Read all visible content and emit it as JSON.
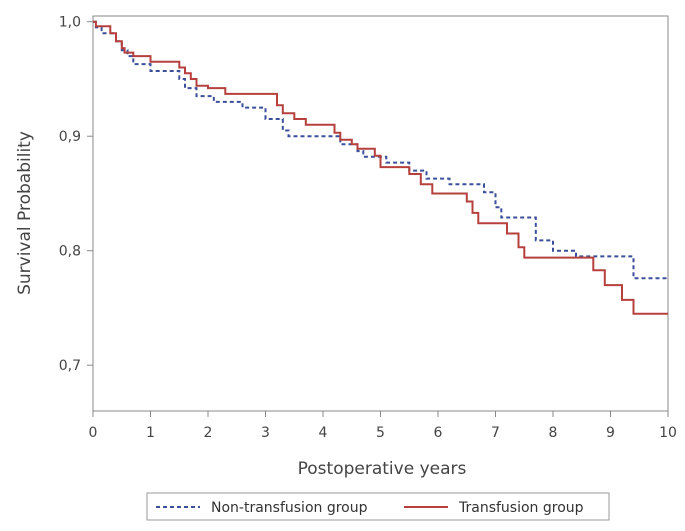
{
  "chart_data": {
    "type": "line",
    "step": true,
    "xlabel": "Postoperative years",
    "ylabel": "Survival Probability",
    "xlim": [
      0,
      10
    ],
    "ylim": [
      0.66,
      1.005
    ],
    "x_ticks": [
      0,
      1,
      2,
      3,
      4,
      5,
      6,
      7,
      8,
      9,
      10
    ],
    "x_tick_labels": [
      "0",
      "1",
      "2",
      "3",
      "4",
      "5",
      "6",
      "7",
      "8",
      "9",
      "10"
    ],
    "y_ticks": [
      0.7,
      0.8,
      0.9,
      1.0
    ],
    "y_tick_labels": [
      "0,7",
      "0,8",
      "0,9",
      "1,0"
    ],
    "grid": false,
    "legend_position": "bottom",
    "series": [
      {
        "name": "Non-transfusion group",
        "color": "#3b4f9a",
        "dash": "dashed",
        "points": [
          [
            0.0,
            1.0
          ],
          [
            0.05,
            0.995
          ],
          [
            0.15,
            0.99
          ],
          [
            0.4,
            0.983
          ],
          [
            0.5,
            0.975
          ],
          [
            0.6,
            0.97
          ],
          [
            0.7,
            0.963
          ],
          [
            1.0,
            0.957
          ],
          [
            1.5,
            0.95
          ],
          [
            1.6,
            0.942
          ],
          [
            1.8,
            0.935
          ],
          [
            2.1,
            0.93
          ],
          [
            2.6,
            0.925
          ],
          [
            3.0,
            0.915
          ],
          [
            3.3,
            0.905
          ],
          [
            3.4,
            0.9
          ],
          [
            4.3,
            0.893
          ],
          [
            4.6,
            0.887
          ],
          [
            4.7,
            0.882
          ],
          [
            5.1,
            0.877
          ],
          [
            5.5,
            0.87
          ],
          [
            5.8,
            0.863
          ],
          [
            6.2,
            0.858
          ],
          [
            6.8,
            0.851
          ],
          [
            7.0,
            0.838
          ],
          [
            7.1,
            0.829
          ],
          [
            7.7,
            0.809
          ],
          [
            8.0,
            0.8
          ],
          [
            8.4,
            0.795
          ],
          [
            9.4,
            0.776
          ],
          [
            10.0,
            0.776
          ]
        ]
      },
      {
        "name": "Transfusion group",
        "color": "#b5403d",
        "dash": "solid",
        "points": [
          [
            0.0,
            1.0
          ],
          [
            0.05,
            0.996
          ],
          [
            0.3,
            0.99
          ],
          [
            0.4,
            0.983
          ],
          [
            0.5,
            0.977
          ],
          [
            0.55,
            0.973
          ],
          [
            0.7,
            0.97
          ],
          [
            1.0,
            0.965
          ],
          [
            1.5,
            0.96
          ],
          [
            1.6,
            0.955
          ],
          [
            1.7,
            0.95
          ],
          [
            1.8,
            0.944
          ],
          [
            2.0,
            0.942
          ],
          [
            2.3,
            0.937
          ],
          [
            3.2,
            0.927
          ],
          [
            3.3,
            0.92
          ],
          [
            3.5,
            0.915
          ],
          [
            3.7,
            0.91
          ],
          [
            4.2,
            0.903
          ],
          [
            4.3,
            0.897
          ],
          [
            4.5,
            0.893
          ],
          [
            4.6,
            0.889
          ],
          [
            4.9,
            0.883
          ],
          [
            5.0,
            0.873
          ],
          [
            5.5,
            0.867
          ],
          [
            5.7,
            0.858
          ],
          [
            5.9,
            0.85
          ],
          [
            6.5,
            0.843
          ],
          [
            6.6,
            0.833
          ],
          [
            6.7,
            0.824
          ],
          [
            7.2,
            0.815
          ],
          [
            7.4,
            0.803
          ],
          [
            7.5,
            0.794
          ],
          [
            8.7,
            0.783
          ],
          [
            8.9,
            0.77
          ],
          [
            9.2,
            0.757
          ],
          [
            9.4,
            0.745
          ],
          [
            10.0,
            0.745
          ]
        ]
      }
    ]
  }
}
